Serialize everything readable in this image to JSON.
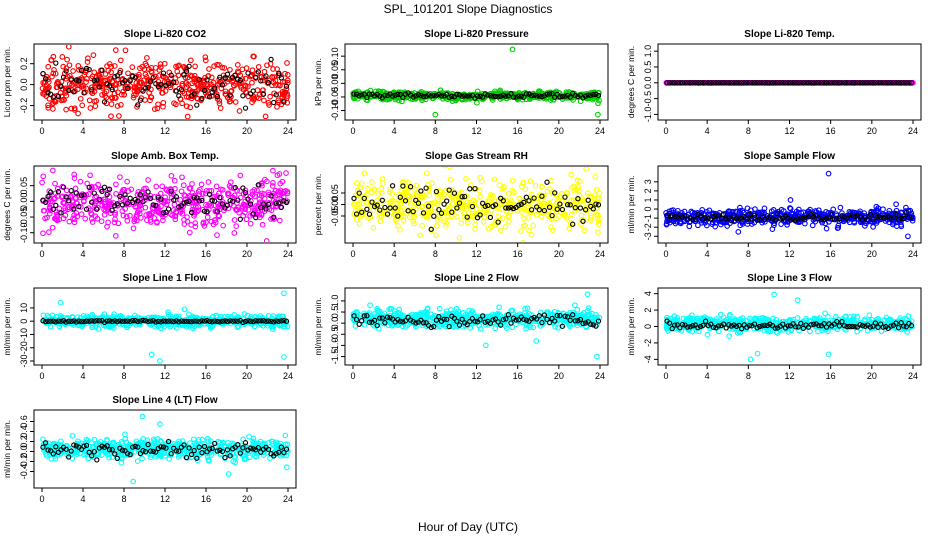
{
  "figure": {
    "title": "SPL_101201  Slope Diagnostics",
    "xlabel": "Hour of Day (UTC)"
  },
  "chart_data": [
    {
      "type": "scatter",
      "title": "Slope Li-820 CO2",
      "ylabel": "Licor ppm per min.",
      "xlim": [
        0,
        24
      ],
      "ylim": [
        -0.3,
        0.35
      ],
      "xticks": [
        0,
        4,
        8,
        12,
        16,
        20,
        24
      ],
      "yticks": [
        -0.2,
        0.0,
        0.2
      ],
      "yticklabels": [
        "-0.2",
        "0.0",
        "0.2"
      ],
      "color": "#ff0000",
      "spread": 0.11,
      "center": 0.0,
      "outliers": [
        [
          7.5,
          -0.3
        ],
        [
          7.2,
          0.33
        ],
        [
          20.6,
          0.27
        ]
      ],
      "black_center": 0.0,
      "black_spread": 0.1
    },
    {
      "type": "scatter",
      "title": "Slope Li-820 Pressure",
      "ylabel": "kPa per min.",
      "xlim": [
        0,
        24
      ],
      "ylim": [
        -0.12,
        0.13
      ],
      "xticks": [
        0,
        4,
        8,
        12,
        16,
        20,
        24
      ],
      "yticks": [
        -0.1,
        -0.05,
        0.0,
        0.05,
        0.1
      ],
      "yticklabels": [
        "-0.10",
        "-0.05",
        "0.00",
        "0.05",
        "0.10"
      ],
      "color": "#00cc00",
      "spread": 0.008,
      "center": -0.045,
      "outliers": [
        [
          15.5,
          0.125
        ],
        [
          8.0,
          -0.115
        ],
        [
          23.8,
          -0.115
        ]
      ],
      "black_center": -0.045,
      "black_spread": 0.004
    },
    {
      "type": "scatter",
      "title": "Slope Li-820 Temp.",
      "ylabel": "degrees C per min.",
      "xlim": [
        0,
        24
      ],
      "ylim": [
        -1.05,
        1.1
      ],
      "xticks": [
        0,
        4,
        8,
        12,
        16,
        20,
        24
      ],
      "yticks": [
        -1.0,
        -0.5,
        0.0,
        0.5,
        1.0
      ],
      "yticklabels": [
        "-1.0",
        "-0.5",
        "0.0",
        "0.5",
        "1.0"
      ],
      "color": "#ff00ff",
      "spread": 0.0,
      "center": 0.0,
      "outliers": [],
      "black_center": 0.0,
      "black_spread": 0.0
    },
    {
      "type": "scatter",
      "title": "Slope Amb. Box Temp.",
      "ylabel": "degrees C per min.",
      "xlim": [
        0,
        24
      ],
      "ylim": [
        -0.12,
        0.1
      ],
      "xticks": [
        0,
        4,
        8,
        12,
        16,
        20,
        24
      ],
      "yticks": [
        -0.1,
        -0.05,
        0.0,
        0.05
      ],
      "yticklabels": [
        "-0.10",
        "-0.05",
        "0.00",
        "0.05"
      ],
      "color": "#ff00ff",
      "spread": 0.04,
      "center": -0.005,
      "outliers": [
        [
          7.2,
          -0.11
        ],
        [
          23.8,
          0.09
        ]
      ],
      "black_center": -0.005,
      "black_spread": 0.025
    },
    {
      "type": "scatter",
      "title": "Slope Gas Stream RH",
      "ylabel": "percent per min.",
      "xlim": [
        0,
        24
      ],
      "ylim": [
        -0.15,
        0.15
      ],
      "xticks": [
        0,
        4,
        8,
        12,
        16,
        20,
        24
      ],
      "yticks": [
        -0.05,
        0.0,
        0.05
      ],
      "yticklabels": [
        "-0.05",
        "0.00",
        "0.05"
      ],
      "color": "#ffff00",
      "spread": 0.05,
      "center": 0.0,
      "outliers": [
        [
          21.2,
          0.13
        ],
        [
          23.8,
          -0.12
        ]
      ],
      "black_center": 0.0,
      "black_spread": 0.04
    },
    {
      "type": "scatter",
      "title": "Slope Sample Flow",
      "ylabel": "ml/min per min.",
      "xlim": [
        0,
        24
      ],
      "ylim": [
        -3.3,
        4.3
      ],
      "xticks": [
        0,
        4,
        8,
        12,
        16,
        20,
        24
      ],
      "yticks": [
        -3,
        -2,
        -1,
        0,
        1,
        2,
        3
      ],
      "yticklabels": [
        "-3",
        "-2",
        "-1",
        "0",
        "1",
        "2",
        "3"
      ],
      "color": "#0000ff",
      "spread": 0.45,
      "center": -0.9,
      "outliers": [
        [
          15.8,
          3.9
        ],
        [
          23.5,
          -3.0
        ],
        [
          12.1,
          1.0
        ]
      ],
      "black_center": -0.9,
      "black_spread": 0.2
    },
    {
      "type": "scatter",
      "title": "Slope Line 1 Flow",
      "ylabel": "ml/min per min.",
      "xlim": [
        0,
        24
      ],
      "ylim": [
        -30,
        22
      ],
      "xticks": [
        0,
        4,
        8,
        12,
        16,
        20,
        24
      ],
      "yticks": [
        -30,
        -20,
        -10,
        0,
        10
      ],
      "yticklabels": [
        "-30",
        "-20",
        "-10",
        "0",
        "10"
      ],
      "color": "#00ffff",
      "spread": 2.2,
      "center": 0.0,
      "outliers": [
        [
          1.8,
          14
        ],
        [
          10.7,
          -25
        ],
        [
          11.5,
          -30
        ],
        [
          23.6,
          -27
        ],
        [
          23.6,
          21
        ],
        [
          13.9,
          9
        ]
      ],
      "black_center": 0.0,
      "black_spread": 0.3
    },
    {
      "type": "scatter",
      "title": "Slope Line 2 Flow",
      "ylabel": "ml/min per min.",
      "xlim": [
        0,
        24
      ],
      "ylim": [
        -1.7,
        1.4
      ],
      "xticks": [
        0,
        4,
        8,
        12,
        16,
        20,
        24
      ],
      "yticks": [
        -1.5,
        -1.0,
        -0.5,
        0.0,
        0.5,
        1.0
      ],
      "yticklabels": [
        "-1.5",
        "-1.0",
        "-0.5",
        "0.0",
        "0.5",
        "1.0"
      ],
      "color": "#00ffff",
      "spread": 0.2,
      "center": 0.2,
      "outliers": [
        [
          22.8,
          1.3
        ],
        [
          23.7,
          -1.5
        ],
        [
          17.8,
          -0.8
        ],
        [
          12.9,
          -1.0
        ]
      ],
      "black_center": 0.1,
      "black_spread": 0.15
    },
    {
      "type": "scatter",
      "title": "Slope Line 3 Flow",
      "ylabel": "ml/min per min.",
      "xlim": [
        0,
        24
      ],
      "ylim": [
        -4.2,
        4.2
      ],
      "xticks": [
        0,
        4,
        8,
        12,
        16,
        20,
        24
      ],
      "yticks": [
        -4,
        -2,
        0,
        2,
        4
      ],
      "yticklabels": [
        "-4",
        "-2",
        "0",
        "2",
        "4"
      ],
      "color": "#00ffff",
      "spread": 0.45,
      "center": 0.3,
      "outliers": [
        [
          8.2,
          -4.0
        ],
        [
          10.5,
          3.9
        ],
        [
          12.8,
          3.2
        ],
        [
          15.8,
          -3.4
        ],
        [
          8.9,
          -3.3
        ]
      ],
      "black_center": 0.1,
      "black_spread": 0.2
    },
    {
      "type": "scatter",
      "title": "Slope Line 4 (LT) Flow",
      "ylabel": "ml/min per min.",
      "xlim": [
        0,
        24
      ],
      "ylim": [
        -0.65,
        0.75
      ],
      "xticks": [
        0,
        4,
        8,
        12,
        16,
        20,
        24
      ],
      "yticks": [
        -0.4,
        -0.2,
        0.0,
        0.2,
        0.4,
        0.6
      ],
      "yticklabels": [
        "-0.4",
        "-0.2",
        "0.0",
        "0.2",
        "0.4",
        "0.6"
      ],
      "color": "#00ffff",
      "spread": 0.1,
      "center": 0.05,
      "outliers": [
        [
          9.8,
          0.7
        ],
        [
          8.9,
          -0.6
        ],
        [
          18.2,
          -0.45
        ],
        [
          11.5,
          0.55
        ]
      ],
      "black_center": 0.05,
      "black_spread": 0.07
    }
  ]
}
